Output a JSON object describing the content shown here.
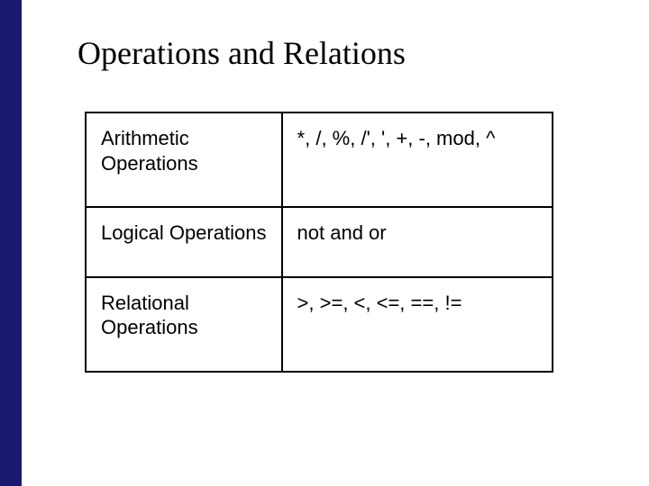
{
  "slide": {
    "title": "Operations and Relations",
    "accent_color": "#191970",
    "background_color": "#ffffff",
    "title_font": "Times New Roman",
    "title_fontsize": 36,
    "body_font": "Arial",
    "body_fontsize": 22
  },
  "table": {
    "type": "table",
    "border_color": "#000000",
    "border_width": 2,
    "columns": [
      "category",
      "operators"
    ],
    "col_widths_pct": [
      42,
      58
    ],
    "rows": [
      {
        "category": "Arithmetic Operations",
        "operators": "*, /, %, /', ', +, -, mod, ^"
      },
      {
        "category": "Logical Operations",
        "operators": "not and or"
      },
      {
        "category": "Relational Operations",
        "operators": ">, >=, <, <=, ==, !="
      }
    ]
  }
}
